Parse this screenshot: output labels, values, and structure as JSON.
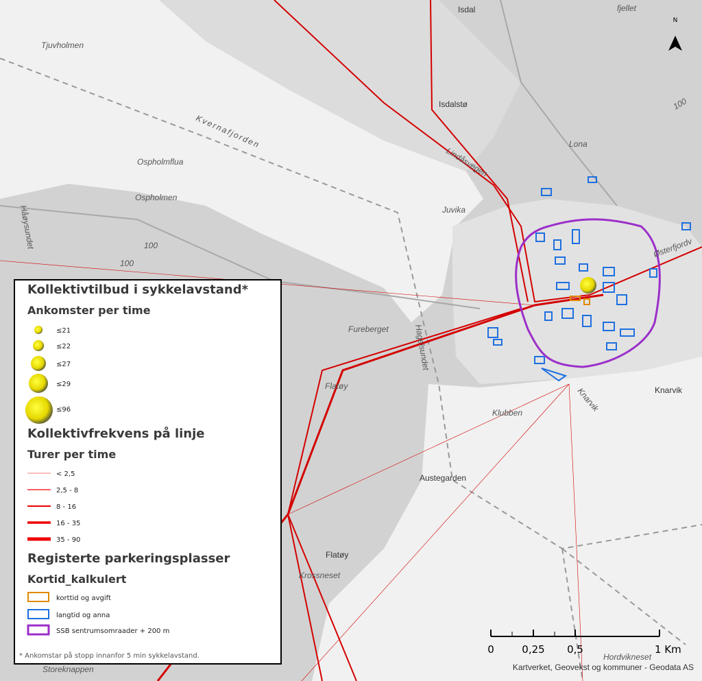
{
  "north": "N",
  "place_labels": [
    "Isdal",
    "fjellet",
    "Tjuvholmen",
    "Isdalstø",
    "Kvernafjorden",
    "Lona",
    "Ospholmflua",
    "Lindåsvegen",
    "Juvika",
    "Ospholmen",
    "Håøysundet",
    "Østerfjordv",
    "Fureberget",
    "Hagelsundet",
    "Flatøy",
    "Klubben",
    "Knarvik",
    "Knarvik",
    "Austegarden",
    "Flatøy",
    "Krossneset",
    "Storeknappen",
    "Hordvikneset",
    "100",
    "100",
    "100"
  ],
  "legend": {
    "stops_title": "Kollektivtilbud i sykkelavstand*",
    "stops_subtitle": "Ankomster per time",
    "stops_classes": [
      "≤21",
      "≤22",
      "≤27",
      "≤29",
      "≤96"
    ],
    "lines_title": "Kollektivfrekvens på linje",
    "lines_subtitle": "Turer per time",
    "lines_classes": [
      "< 2,5",
      "2,5 - 8",
      "8 - 16",
      "16 - 35",
      "35 - 90"
    ],
    "parking_title": "Registerte parkeringsplasser",
    "parking_subtitle": "Kortid_kalkulert",
    "parking_classes": [
      "korttid og avgift",
      "langtid og anna",
      "SSB sentrumsomraader + 200 m"
    ],
    "footnote": "* Ankomstar på stopp innanfor 5 min sykkelavstand."
  },
  "scale_bar": [
    "0",
    "0,25",
    "0,5",
    "1 Km"
  ],
  "attribution": "Kartverket, Geovekst og kommuner - Geodata AS"
}
